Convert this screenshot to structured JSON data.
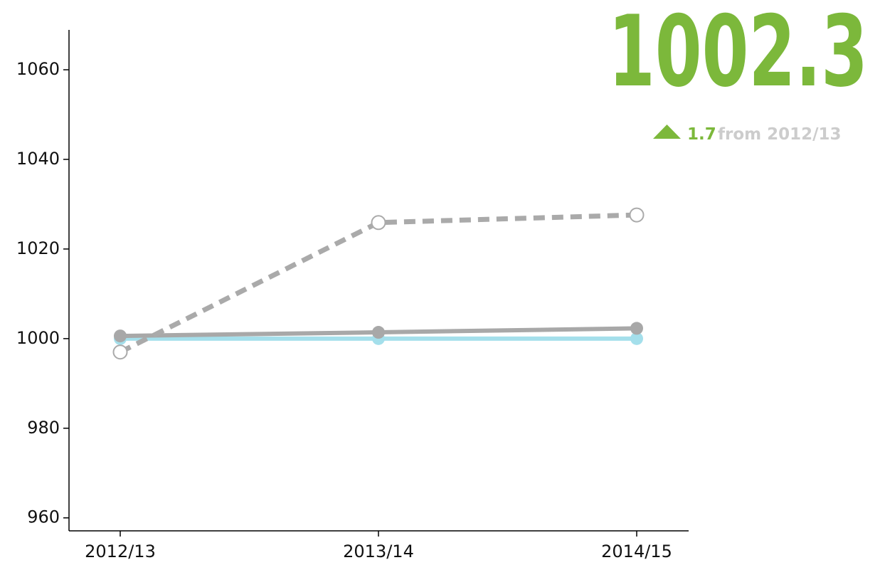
{
  "chart_data": {
    "type": "line",
    "headline": "1002.3",
    "change": "1.7",
    "change_label": "from 2012/13",
    "categories": [
      "2012/13",
      "2013/14",
      "2014/15"
    ],
    "series": [
      {
        "color": "#a4dfeb",
        "dashed": false,
        "marker": "filled",
        "values": [
          1000,
          1000,
          1000
        ]
      },
      {
        "color": "#a8a8a8",
        "dashed": false,
        "marker": "filled",
        "values": [
          1000.6,
          1001.4,
          1002.3
        ]
      },
      {
        "color": "#aaaaaa",
        "dashed": true,
        "marker": "hollow",
        "values": [
          997.0,
          1025.9,
          1027.6
        ]
      }
    ],
    "ylim": [
      957.1,
      1068.9
    ],
    "yticks": [
      960,
      980,
      1000,
      1020,
      1040,
      1060
    ],
    "accent_color": "#7cb83b",
    "muted_color": "#cccccc"
  }
}
